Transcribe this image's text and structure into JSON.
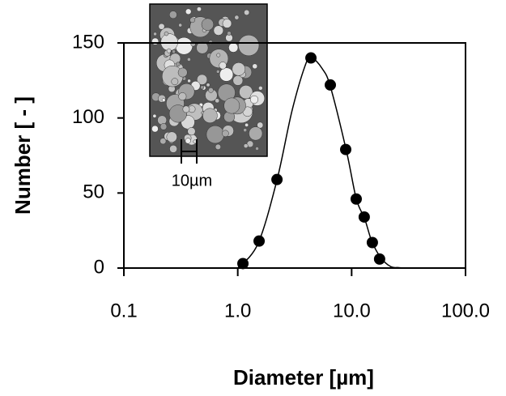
{
  "chart_data": {
    "type": "scatter",
    "x_label": "Diameter  [µm]",
    "y_label": "Number  [ - ]",
    "annotation": "10µm",
    "log_x": true,
    "grid": false,
    "xlim": [
      0.1,
      100
    ],
    "xticks": [
      {
        "value": 0.1,
        "label": "0.1"
      },
      {
        "value": 1,
        "label": "1.0"
      },
      {
        "value": 10,
        "label": "10.0"
      },
      {
        "value": 100,
        "label": "100.0"
      }
    ],
    "ylim": [
      0,
      150
    ],
    "yticks": [
      0,
      50,
      100,
      150
    ],
    "series": [
      {
        "kind": "scatter",
        "color": "#000000",
        "x": [
          1.11,
          1.54,
          2.21,
          4.39,
          6.5,
          8.87,
          10.97,
          12.9,
          15.2,
          17.6
        ],
        "values": [
          3,
          18,
          59,
          140,
          122,
          79,
          46,
          34,
          17,
          6
        ]
      },
      {
        "kind": "line",
        "color": "#000000",
        "x": [
          1.0,
          1.5,
          2.2,
          3.0,
          4.0,
          4.5,
          5.5,
          6.5,
          9,
          11,
          13,
          15,
          18,
          22,
          26,
          30
        ],
        "values": [
          0,
          16,
          58,
          105,
          137,
          140,
          133,
          121,
          78,
          46,
          33,
          18,
          7,
          1,
          0.3,
          0
        ]
      }
    ]
  }
}
